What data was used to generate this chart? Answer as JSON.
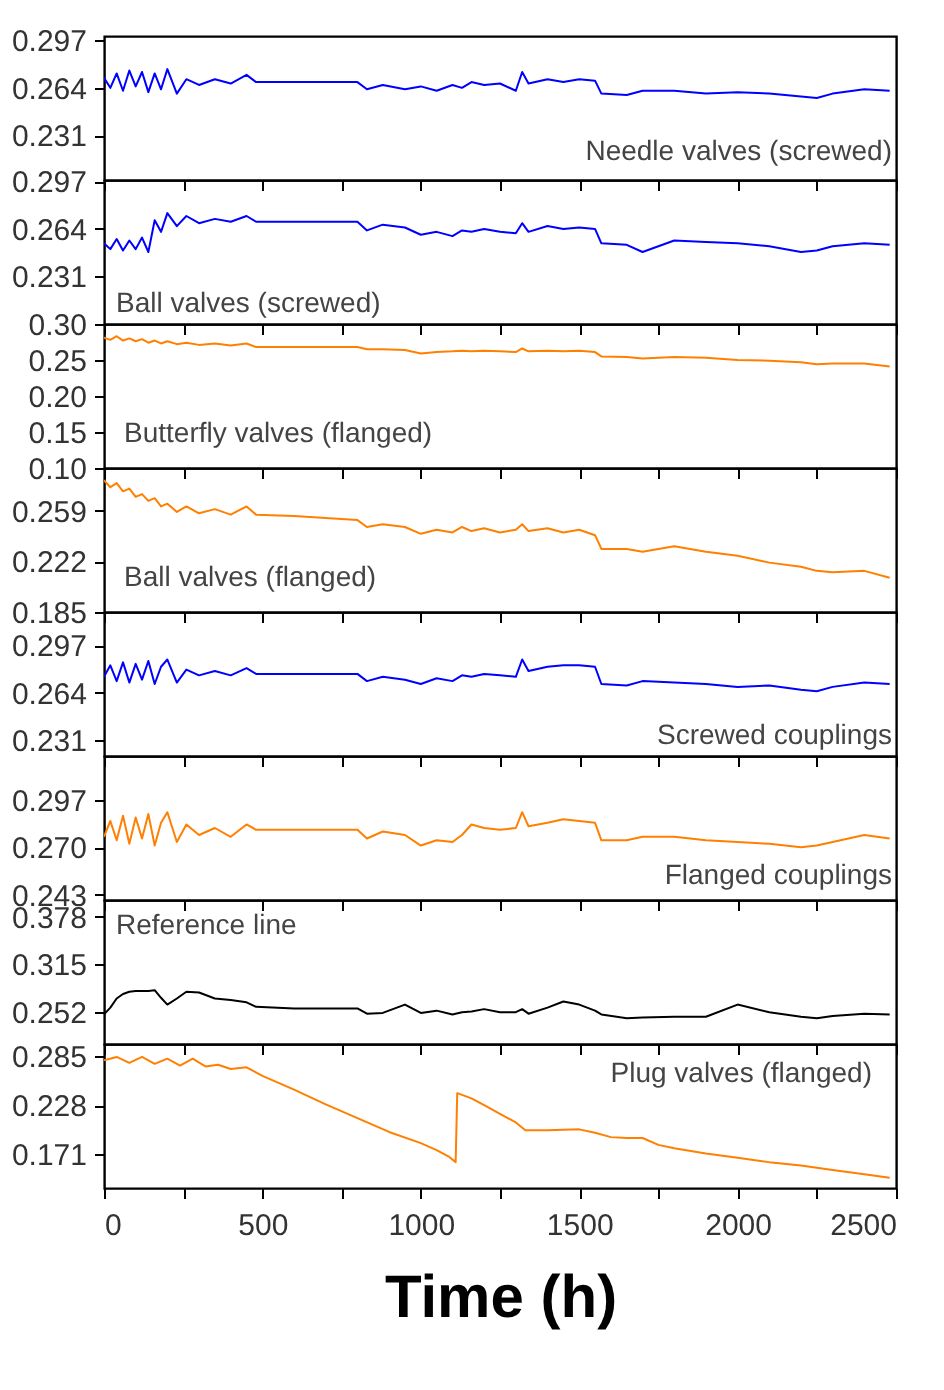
{
  "chart_data": [
    {
      "type": "line",
      "annotations": [
        "Needle valves (screwed)"
      ],
      "xlim": [
        0,
        2500
      ],
      "xticks": [
        0,
        {
          "value": 250,
          "label": null
        },
        500,
        {
          "value": 750,
          "label": null
        },
        1000,
        {
          "value": 1250,
          "label": null
        },
        1500,
        {
          "value": 1750,
          "label": null
        },
        2000,
        {
          "value": 2250,
          "label": null
        },
        2500
      ],
      "ylim": [
        0.2,
        0.3
      ],
      "yticks": [
        0.231,
        0.264,
        0.297
      ],
      "tick_labels": "y",
      "x": [
        0,
        20,
        40,
        60,
        80,
        100,
        120,
        140,
        160,
        180,
        200,
        230,
        260,
        300,
        350,
        400,
        450,
        480,
        600,
        800,
        830,
        880,
        950,
        1000,
        1050,
        1100,
        1130,
        1160,
        1200,
        1250,
        1300,
        1320,
        1340,
        1400,
        1450,
        1500,
        1550,
        1570,
        1650,
        1700,
        1800,
        1900,
        2000,
        2100,
        2200,
        2250,
        2300,
        2400,
        2480
      ],
      "series": [
        {
          "color": "#0000ff",
          "values": [
            0.271,
            0.264,
            0.274,
            0.262,
            0.276,
            0.265,
            0.275,
            0.261,
            0.274,
            0.263,
            0.277,
            0.26,
            0.27,
            0.266,
            0.27,
            0.267,
            0.273,
            0.268,
            0.268,
            0.268,
            0.263,
            0.266,
            0.263,
            0.265,
            0.262,
            0.266,
            0.264,
            0.268,
            0.266,
            0.267,
            0.262,
            0.275,
            0.267,
            0.27,
            0.268,
            0.27,
            0.269,
            0.26,
            0.259,
            0.262,
            0.262,
            0.26,
            0.261,
            0.26,
            0.258,
            0.257,
            0.26,
            0.263,
            0.262
          ]
        }
      ]
    },
    {
      "type": "line",
      "annotations": [
        "Ball valves (screwed)"
      ],
      "xlim": [
        0,
        2500
      ],
      "xticks": [
        0,
        {
          "value": 250,
          "label": null
        },
        500,
        {
          "value": 750,
          "label": null
        },
        1000,
        {
          "value": 1250,
          "label": null
        },
        1500,
        {
          "value": 1750,
          "label": null
        },
        2000,
        {
          "value": 2250,
          "label": null
        },
        2500
      ],
      "ylim": [
        0.198,
        0.298
      ],
      "yticks": [
        0.231,
        0.264,
        0.297
      ],
      "tick_labels": "y",
      "x": [
        0,
        20,
        40,
        60,
        80,
        100,
        120,
        140,
        160,
        180,
        200,
        230,
        260,
        300,
        350,
        400,
        450,
        480,
        600,
        800,
        830,
        880,
        950,
        1000,
        1050,
        1100,
        1130,
        1160,
        1200,
        1250,
        1300,
        1320,
        1340,
        1400,
        1450,
        1500,
        1550,
        1570,
        1650,
        1700,
        1800,
        1900,
        2000,
        2100,
        2200,
        2250,
        2300,
        2400,
        2480
      ],
      "series": [
        {
          "color": "#0000ff",
          "values": [
            0.254,
            0.25,
            0.257,
            0.249,
            0.256,
            0.25,
            0.258,
            0.248,
            0.27,
            0.262,
            0.275,
            0.266,
            0.273,
            0.268,
            0.271,
            0.269,
            0.273,
            0.269,
            0.269,
            0.269,
            0.263,
            0.267,
            0.265,
            0.26,
            0.262,
            0.259,
            0.263,
            0.262,
            0.264,
            0.262,
            0.261,
            0.268,
            0.262,
            0.266,
            0.264,
            0.265,
            0.264,
            0.254,
            0.253,
            0.248,
            0.256,
            0.255,
            0.254,
            0.252,
            0.248,
            0.249,
            0.252,
            0.254,
            0.253
          ]
        }
      ]
    },
    {
      "type": "line",
      "annotations": [
        "Butterfly valves (flanged)"
      ],
      "xlim": [
        0,
        2500
      ],
      "xticks": [
        0,
        {
          "value": 250,
          "label": null
        },
        500,
        {
          "value": 750,
          "label": null
        },
        1000,
        {
          "value": 1250,
          "label": null
        },
        1500,
        {
          "value": 1750,
          "label": null
        },
        2000,
        {
          "value": 2250,
          "label": null
        },
        2500
      ],
      "ylim": [
        0.1,
        0.3
      ],
      "yticks": [
        {
          "value": 0.1,
          "label": "0.10"
        },
        0.15,
        {
          "value": 0.2,
          "label": "0.20"
        },
        0.25,
        {
          "value": 0.3,
          "label": "0.30"
        }
      ],
      "tick_labels": "y",
      "x": [
        0,
        20,
        40,
        60,
        80,
        100,
        120,
        140,
        160,
        180,
        200,
        230,
        260,
        300,
        350,
        400,
        450,
        480,
        600,
        800,
        830,
        880,
        950,
        1000,
        1050,
        1100,
        1130,
        1160,
        1200,
        1250,
        1300,
        1320,
        1340,
        1400,
        1450,
        1500,
        1550,
        1570,
        1650,
        1700,
        1800,
        1900,
        2000,
        2100,
        2200,
        2250,
        2300,
        2400,
        2480
      ],
      "series": [
        {
          "color": "#ff8000",
          "values": [
            0.281,
            0.278,
            0.283,
            0.277,
            0.28,
            0.276,
            0.279,
            0.274,
            0.277,
            0.273,
            0.276,
            0.272,
            0.274,
            0.271,
            0.273,
            0.27,
            0.273,
            0.268,
            0.268,
            0.268,
            0.265,
            0.265,
            0.264,
            0.259,
            0.261,
            0.262,
            0.263,
            0.262,
            0.263,
            0.262,
            0.261,
            0.266,
            0.262,
            0.263,
            0.262,
            0.263,
            0.261,
            0.255,
            0.254,
            0.252,
            0.254,
            0.253,
            0.25,
            0.249,
            0.247,
            0.244,
            0.245,
            0.245,
            0.241
          ]
        }
      ]
    },
    {
      "type": "line",
      "annotations": [
        "Ball valves (flanged)"
      ],
      "xlim": [
        0,
        2500
      ],
      "xticks": [
        0,
        {
          "value": 250,
          "label": null
        },
        500,
        {
          "value": 750,
          "label": null
        },
        1000,
        {
          "value": 1250,
          "label": null
        },
        1500,
        {
          "value": 1750,
          "label": null
        },
        2000,
        {
          "value": 2250,
          "label": null
        },
        2500
      ],
      "ylim": [
        0.185,
        0.29
      ],
      "yticks": [
        0.185,
        0.222,
        0.259
      ],
      "tick_labels": "y",
      "x": [
        0,
        20,
        40,
        60,
        80,
        100,
        120,
        140,
        160,
        180,
        200,
        230,
        260,
        300,
        350,
        400,
        450,
        480,
        600,
        800,
        830,
        880,
        950,
        1000,
        1050,
        1100,
        1130,
        1160,
        1200,
        1250,
        1300,
        1320,
        1340,
        1400,
        1450,
        1500,
        1550,
        1570,
        1650,
        1700,
        1800,
        1900,
        2000,
        2100,
        2200,
        2250,
        2300,
        2400,
        2480
      ],
      "series": [
        {
          "color": "#ff8000",
          "values": [
            0.281,
            0.276,
            0.279,
            0.273,
            0.275,
            0.269,
            0.271,
            0.266,
            0.268,
            0.262,
            0.264,
            0.258,
            0.262,
            0.257,
            0.26,
            0.256,
            0.262,
            0.256,
            0.255,
            0.252,
            0.247,
            0.249,
            0.247,
            0.242,
            0.245,
            0.243,
            0.247,
            0.244,
            0.246,
            0.243,
            0.245,
            0.249,
            0.244,
            0.246,
            0.243,
            0.245,
            0.241,
            0.231,
            0.231,
            0.229,
            0.233,
            0.229,
            0.226,
            0.221,
            0.218,
            0.215,
            0.214,
            0.215,
            0.21
          ]
        }
      ]
    },
    {
      "type": "line",
      "annotations": [
        "Screwed couplings"
      ],
      "xlim": [
        0,
        2500
      ],
      "xticks": [
        0,
        {
          "value": 250,
          "label": null
        },
        500,
        {
          "value": 750,
          "label": null
        },
        1000,
        {
          "value": 1250,
          "label": null
        },
        1500,
        {
          "value": 1750,
          "label": null
        },
        2000,
        {
          "value": 2250,
          "label": null
        },
        2500
      ],
      "ylim": [
        0.22,
        0.32
      ],
      "yticks": [
        0.231,
        0.264,
        0.297
      ],
      "tick_labels": "y",
      "x": [
        0,
        20,
        40,
        60,
        80,
        100,
        120,
        140,
        160,
        180,
        200,
        230,
        260,
        300,
        350,
        400,
        450,
        480,
        600,
        800,
        830,
        880,
        950,
        1000,
        1050,
        1100,
        1130,
        1160,
        1200,
        1250,
        1300,
        1320,
        1340,
        1400,
        1450,
        1500,
        1550,
        1570,
        1650,
        1700,
        1800,
        1900,
        2000,
        2100,
        2200,
        2250,
        2300,
        2400,
        2480
      ],
      "series": [
        {
          "color": "#0000ff",
          "values": [
            0.275,
            0.283,
            0.272,
            0.285,
            0.271,
            0.284,
            0.273,
            0.286,
            0.27,
            0.282,
            0.287,
            0.271,
            0.28,
            0.276,
            0.279,
            0.276,
            0.281,
            0.277,
            0.277,
            0.277,
            0.272,
            0.275,
            0.273,
            0.27,
            0.274,
            0.272,
            0.276,
            0.275,
            0.277,
            0.276,
            0.275,
            0.287,
            0.279,
            0.282,
            0.283,
            0.283,
            0.282,
            0.27,
            0.269,
            0.272,
            0.271,
            0.27,
            0.268,
            0.269,
            0.266,
            0.265,
            0.268,
            0.271,
            0.27
          ]
        }
      ]
    },
    {
      "type": "line",
      "annotations": [
        "Flanged couplings"
      ],
      "xlim": [
        0,
        2500
      ],
      "xticks": [
        0,
        {
          "value": 250,
          "label": null
        },
        500,
        {
          "value": 750,
          "label": null
        },
        1000,
        {
          "value": 1250,
          "label": null
        },
        1500,
        {
          "value": 1750,
          "label": null
        },
        2000,
        {
          "value": 2250,
          "label": null
        },
        2500
      ],
      "ylim": [
        0.24,
        0.322
      ],
      "yticks": [
        0.243,
        {
          "value": 0.27,
          "label": "0.270"
        },
        0.297
      ],
      "tick_labels": "y",
      "x": [
        0,
        20,
        40,
        60,
        80,
        100,
        120,
        140,
        160,
        180,
        200,
        230,
        260,
        300,
        350,
        400,
        450,
        480,
        600,
        800,
        830,
        880,
        950,
        1000,
        1050,
        1100,
        1130,
        1160,
        1200,
        1250,
        1300,
        1320,
        1340,
        1400,
        1450,
        1500,
        1550,
        1570,
        1650,
        1700,
        1800,
        1900,
        2000,
        2100,
        2200,
        2250,
        2300,
        2400,
        2480
      ],
      "series": [
        {
          "color": "#ff8000",
          "values": [
            0.276,
            0.285,
            0.274,
            0.288,
            0.272,
            0.287,
            0.275,
            0.289,
            0.271,
            0.284,
            0.29,
            0.273,
            0.283,
            0.277,
            0.281,
            0.276,
            0.283,
            0.28,
            0.28,
            0.28,
            0.275,
            0.279,
            0.277,
            0.271,
            0.274,
            0.273,
            0.277,
            0.283,
            0.281,
            0.28,
            0.281,
            0.29,
            0.282,
            0.284,
            0.286,
            0.285,
            0.284,
            0.274,
            0.274,
            0.276,
            0.276,
            0.274,
            0.273,
            0.272,
            0.27,
            0.271,
            0.273,
            0.277,
            0.275
          ]
        }
      ]
    },
    {
      "type": "line",
      "annotations": [
        "Reference line"
      ],
      "xlim": [
        0,
        2500
      ],
      "xticks": [
        0,
        {
          "value": 250,
          "label": null
        },
        500,
        {
          "value": 750,
          "label": null
        },
        1000,
        {
          "value": 1250,
          "label": null
        },
        1500,
        {
          "value": 1750,
          "label": null
        },
        2000,
        {
          "value": 2250,
          "label": null
        },
        2500
      ],
      "ylim": [
        0.21,
        0.4
      ],
      "yticks": [
        0.252,
        0.315,
        0.378
      ],
      "tick_labels": "y",
      "x": [
        0,
        20,
        40,
        60,
        80,
        100,
        120,
        140,
        160,
        180,
        200,
        230,
        260,
        300,
        350,
        400,
        450,
        480,
        600,
        800,
        830,
        880,
        950,
        1000,
        1050,
        1100,
        1130,
        1160,
        1200,
        1250,
        1300,
        1320,
        1340,
        1400,
        1450,
        1500,
        1550,
        1570,
        1650,
        1700,
        1800,
        1900,
        2000,
        2100,
        2200,
        2250,
        2300,
        2400,
        2480
      ],
      "series": [
        {
          "color": "#000000",
          "values": [
            0.249,
            0.258,
            0.27,
            0.276,
            0.279,
            0.28,
            0.28,
            0.28,
            0.281,
            0.271,
            0.262,
            0.27,
            0.279,
            0.278,
            0.27,
            0.268,
            0.265,
            0.259,
            0.257,
            0.257,
            0.25,
            0.251,
            0.262,
            0.251,
            0.254,
            0.249,
            0.252,
            0.253,
            0.256,
            0.252,
            0.252,
            0.256,
            0.25,
            0.258,
            0.266,
            0.262,
            0.254,
            0.249,
            0.244,
            0.245,
            0.246,
            0.246,
            0.262,
            0.252,
            0.246,
            0.244,
            0.247,
            0.25,
            0.249
          ]
        }
      ]
    },
    {
      "type": "line",
      "annotations": [
        "Plug valves (flanged)"
      ],
      "xlabel": "Time (h)",
      "xlim": [
        0,
        2500
      ],
      "xticks": [
        0,
        {
          "value": 250,
          "label": null
        },
        500,
        {
          "value": 750,
          "label": null
        },
        1000,
        {
          "value": 1250,
          "label": null
        },
        1500,
        {
          "value": 1750,
          "label": null
        },
        2000,
        {
          "value": 2250,
          "label": null
        },
        2500
      ],
      "ylim": [
        0.132,
        0.299
      ],
      "yticks": [
        0.171,
        0.228,
        0.285
      ],
      "x": [
        0,
        40,
        80,
        120,
        160,
        200,
        240,
        280,
        320,
        360,
        400,
        450,
        500,
        600,
        700,
        800,
        900,
        1000,
        1050,
        1090,
        1110,
        1115,
        1130,
        1160,
        1200,
        1250,
        1300,
        1330,
        1400,
        1500,
        1550,
        1600,
        1650,
        1700,
        1750,
        1800,
        1900,
        2000,
        2100,
        2200,
        2300,
        2400,
        2480
      ],
      "series": [
        {
          "color": "#ff8000",
          "values": [
            0.28,
            0.284,
            0.277,
            0.284,
            0.276,
            0.282,
            0.274,
            0.282,
            0.273,
            0.275,
            0.27,
            0.272,
            0.262,
            0.246,
            0.229,
            0.213,
            0.197,
            0.184,
            0.176,
            0.168,
            0.162,
            0.242,
            0.24,
            0.236,
            0.228,
            0.218,
            0.208,
            0.199,
            0.199,
            0.2,
            0.196,
            0.191,
            0.19,
            0.19,
            0.182,
            0.178,
            0.172,
            0.167,
            0.162,
            0.158,
            0.153,
            0.148,
            0.144
          ]
        }
      ]
    }
  ]
}
